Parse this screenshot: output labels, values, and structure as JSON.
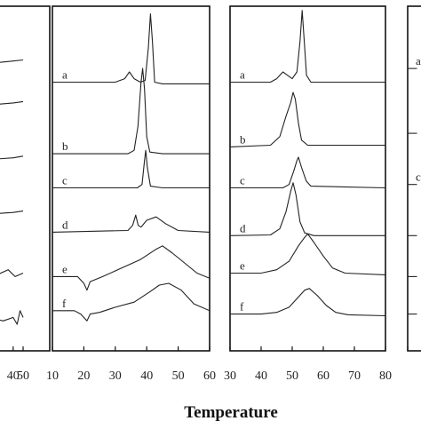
{
  "xlabel": "Temperature",
  "chart_data": [
    {
      "type": "line",
      "panel": "partial-left",
      "xlim": [
        0,
        50
      ],
      "ylim": [
        0,
        100
      ],
      "x_ticks_visible": [
        {
          "value": 40,
          "label": "40"
        },
        {
          "value": 50,
          "label": "50"
        }
      ],
      "series": [
        {
          "values": [
            [
              0,
              83
            ],
            [
              10,
              83.3
            ],
            [
              20,
              83.6
            ],
            [
              30,
              83.9
            ],
            [
              40,
              84.2
            ],
            [
              50,
              84.5
            ]
          ]
        },
        {
          "values": [
            [
              0,
              71
            ],
            [
              20,
              71.4
            ],
            [
              40,
              71.9
            ],
            [
              50,
              72.3
            ]
          ]
        },
        {
          "values": [
            [
              0,
              55
            ],
            [
              20,
              55.4
            ],
            [
              40,
              55.8
            ],
            [
              50,
              56.3
            ]
          ]
        },
        {
          "values": [
            [
              0,
              39
            ],
            [
              20,
              39.4
            ],
            [
              40,
              39.8
            ],
            [
              50,
              40.2
            ]
          ]
        },
        {
          "values": [
            [
              0,
              22
            ],
            [
              20,
              21
            ],
            [
              35,
              23
            ],
            [
              42,
              21
            ],
            [
              50,
              22
            ]
          ]
        },
        {
          "values": [
            [
              0,
              8
            ],
            [
              15,
              9
            ],
            [
              30,
              8
            ],
            [
              40,
              9
            ],
            [
              44,
              7
            ],
            [
              47,
              11
            ],
            [
              50,
              9
            ]
          ]
        }
      ]
    },
    {
      "type": "line",
      "panel": "middle-left",
      "xlim": [
        10,
        60
      ],
      "ylim": [
        0,
        100
      ],
      "x_ticks": [
        10,
        20,
        30,
        40,
        50,
        60
      ],
      "tick_labels": [
        "10",
        "20",
        "30",
        "40",
        "50",
        "60"
      ],
      "series": [
        {
          "name": "a",
          "values": [
            [
              10,
              78
            ],
            [
              30,
              78
            ],
            [
              33,
              79
            ],
            [
              34.5,
              81
            ],
            [
              36,
              79
            ],
            [
              38,
              78
            ],
            [
              39.5,
              78.5
            ],
            [
              40.5,
              88
            ],
            [
              41.2,
              98
            ],
            [
              41.8,
              90
            ],
            [
              42.5,
              78
            ],
            [
              45,
              77.5
            ],
            [
              60,
              77.5
            ]
          ]
        },
        {
          "name": "b",
          "values": [
            [
              10,
              57
            ],
            [
              34,
              57
            ],
            [
              36,
              58
            ],
            [
              37.2,
              65
            ],
            [
              38.2,
              78
            ],
            [
              38.7,
              82
            ],
            [
              39.3,
              76
            ],
            [
              40,
              62
            ],
            [
              41,
              57.5
            ],
            [
              45,
              57
            ],
            [
              60,
              57
            ]
          ]
        },
        {
          "name": "c",
          "values": [
            [
              10,
              47
            ],
            [
              37,
              47
            ],
            [
              38.5,
              48
            ],
            [
              39.3,
              55
            ],
            [
              39.7,
              58
            ],
            [
              40.2,
              53
            ],
            [
              41.2,
              47.5
            ],
            [
              45,
              47
            ],
            [
              60,
              47
            ]
          ]
        },
        {
          "name": "d",
          "values": [
            [
              10,
              34
            ],
            [
              34,
              34.5
            ],
            [
              35.5,
              36
            ],
            [
              36.5,
              39
            ],
            [
              37.3,
              36
            ],
            [
              38.2,
              35.5
            ],
            [
              40,
              37.5
            ],
            [
              43,
              38.5
            ],
            [
              46,
              36.5
            ],
            [
              50,
              34.5
            ],
            [
              60,
              34
            ]
          ]
        },
        {
          "name": "e",
          "values": [
            [
              10,
              21
            ],
            [
              18,
              21
            ],
            [
              20,
              19
            ],
            [
              21,
              17
            ],
            [
              22,
              19.5
            ],
            [
              26,
              21
            ],
            [
              32,
              23.5
            ],
            [
              38,
              26
            ],
            [
              43,
              29
            ],
            [
              45,
              30
            ],
            [
              48,
              28
            ],
            [
              52,
              25
            ],
            [
              56,
              22
            ],
            [
              60,
              20.5
            ]
          ]
        },
        {
          "name": "f",
          "values": [
            [
              10,
              11
            ],
            [
              17,
              11
            ],
            [
              19,
              10
            ],
            [
              21,
              8
            ],
            [
              22,
              10
            ],
            [
              25,
              10.5
            ],
            [
              30,
              12
            ],
            [
              36,
              13.5
            ],
            [
              41,
              16.5
            ],
            [
              44,
              18.5
            ],
            [
              47,
              19
            ],
            [
              51,
              17
            ],
            [
              55,
              13
            ],
            [
              60,
              11
            ]
          ]
        }
      ],
      "labels": [
        "a",
        "b",
        "c",
        "d",
        "e",
        "f"
      ]
    },
    {
      "type": "line",
      "panel": "middle-right",
      "xlim": [
        30,
        80
      ],
      "ylim": [
        0,
        100
      ],
      "x_ticks": [
        30,
        40,
        50,
        60,
        70,
        80
      ],
      "tick_labels": [
        "30",
        "40",
        "50",
        "60",
        "70",
        "80"
      ],
      "series": [
        {
          "name": "a",
          "values": [
            [
              30,
              78
            ],
            [
              43,
              78
            ],
            [
              45,
              79
            ],
            [
              47,
              81
            ],
            [
              48.5,
              80
            ],
            [
              50,
              79
            ],
            [
              51.5,
              81
            ],
            [
              52.5,
              90
            ],
            [
              53.2,
              99
            ],
            [
              53.8,
              91
            ],
            [
              54.6,
              80
            ],
            [
              56,
              78
            ],
            [
              80,
              78
            ]
          ]
        },
        {
          "name": "b",
          "values": [
            [
              30,
              59
            ],
            [
              43,
              59.5
            ],
            [
              46,
              62
            ],
            [
              48,
              68
            ],
            [
              49.5,
              72
            ],
            [
              50.3,
              75
            ],
            [
              51,
              73
            ],
            [
              52,
              66
            ],
            [
              53,
              61
            ],
            [
              55,
              59.5
            ],
            [
              80,
              59.5
            ]
          ]
        },
        {
          "name": "c",
          "values": [
            [
              30,
              47
            ],
            [
              47,
              47
            ],
            [
              49,
              48
            ],
            [
              50.5,
              52
            ],
            [
              51.5,
              55
            ],
            [
              52,
              56
            ],
            [
              53,
              53
            ],
            [
              54.5,
              49
            ],
            [
              56,
              47.5
            ],
            [
              80,
              47
            ]
          ]
        },
        {
          "name": "d",
          "values": [
            [
              30,
              33
            ],
            [
              43,
              33.2
            ],
            [
              46,
              35
            ],
            [
              48,
              40
            ],
            [
              49.5,
              46
            ],
            [
              50.3,
              48.5
            ],
            [
              51.2,
              45
            ],
            [
              52.5,
              37
            ],
            [
              54,
              33.8
            ],
            [
              57,
              33
            ],
            [
              80,
              33
            ]
          ]
        },
        {
          "name": "e",
          "values": [
            [
              30,
              22
            ],
            [
              40,
              22
            ],
            [
              45,
              23
            ],
            [
              49,
              25.5
            ],
            [
              52,
              30
            ],
            [
              54,
              32.5
            ],
            [
              55,
              33.5
            ],
            [
              57,
              31
            ],
            [
              60,
              27
            ],
            [
              63,
              23.5
            ],
            [
              67,
              22
            ],
            [
              80,
              21.5
            ]
          ]
        },
        {
          "name": "f",
          "values": [
            [
              30,
              10
            ],
            [
              40,
              10
            ],
            [
              45,
              10.5
            ],
            [
              49,
              12
            ],
            [
              52,
              15
            ],
            [
              54,
              17
            ],
            [
              55.5,
              17.5
            ],
            [
              58,
              15.5
            ],
            [
              61,
              12.5
            ],
            [
              64,
              10.5
            ],
            [
              68,
              9.8
            ],
            [
              80,
              9.5
            ]
          ]
        }
      ],
      "labels": [
        "a",
        "b",
        "c",
        "d",
        "e",
        "f"
      ]
    },
    {
      "type": "line",
      "panel": "partial-right",
      "xlim": [
        30,
        80
      ],
      "ylim": [
        0,
        100
      ],
      "x_ticks_visible": [
        {
          "value": 30,
          "label": ""
        }
      ],
      "series": [
        {
          "values": [
            [
              30,
              82
            ],
            [
              33,
              82
            ]
          ]
        },
        {
          "values": [
            [
              30,
              63
            ],
            [
              33,
              63
            ]
          ]
        },
        {
          "values": [
            [
              30,
              48
            ],
            [
              33,
              48
            ]
          ]
        },
        {
          "values": [
            [
              30,
              33
            ],
            [
              33,
              33
            ]
          ]
        },
        {
          "values": [
            [
              30,
              21
            ],
            [
              33,
              21
            ]
          ]
        },
        {
          "values": [
            [
              30,
              10
            ],
            [
              33,
              10
            ]
          ]
        }
      ],
      "labels": [
        "a",
        "",
        "c",
        "",
        "",
        ""
      ]
    }
  ]
}
